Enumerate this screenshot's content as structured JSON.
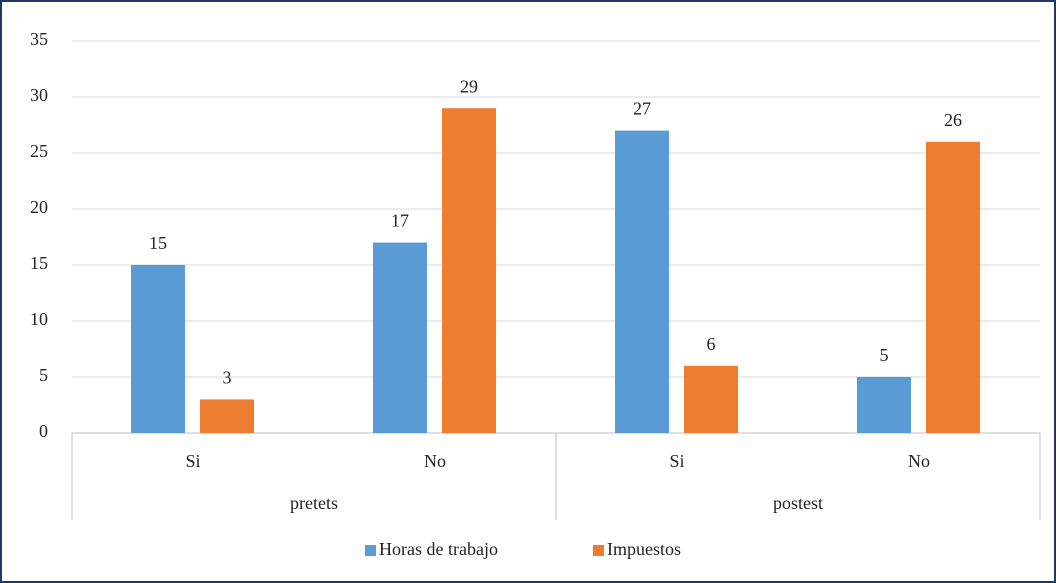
{
  "chart_data": {
    "type": "bar",
    "groups": [
      {
        "name": "pretets",
        "categories": [
          "Si",
          "No"
        ]
      },
      {
        "name": "postest",
        "categories": [
          "Si",
          "No"
        ]
      }
    ],
    "series": [
      {
        "name": "Horas de trabajo",
        "color": "#5b9bd5",
        "values": [
          15,
          17,
          27,
          5
        ]
      },
      {
        "name": "Impuestos",
        "color": "#ed7d31",
        "values": [
          3,
          29,
          6,
          26
        ]
      }
    ],
    "ylim": [
      0,
      35
    ],
    "yticks": [
      0,
      5,
      10,
      15,
      20,
      25,
      30,
      35
    ],
    "grid": true,
    "legend": "bottom"
  }
}
